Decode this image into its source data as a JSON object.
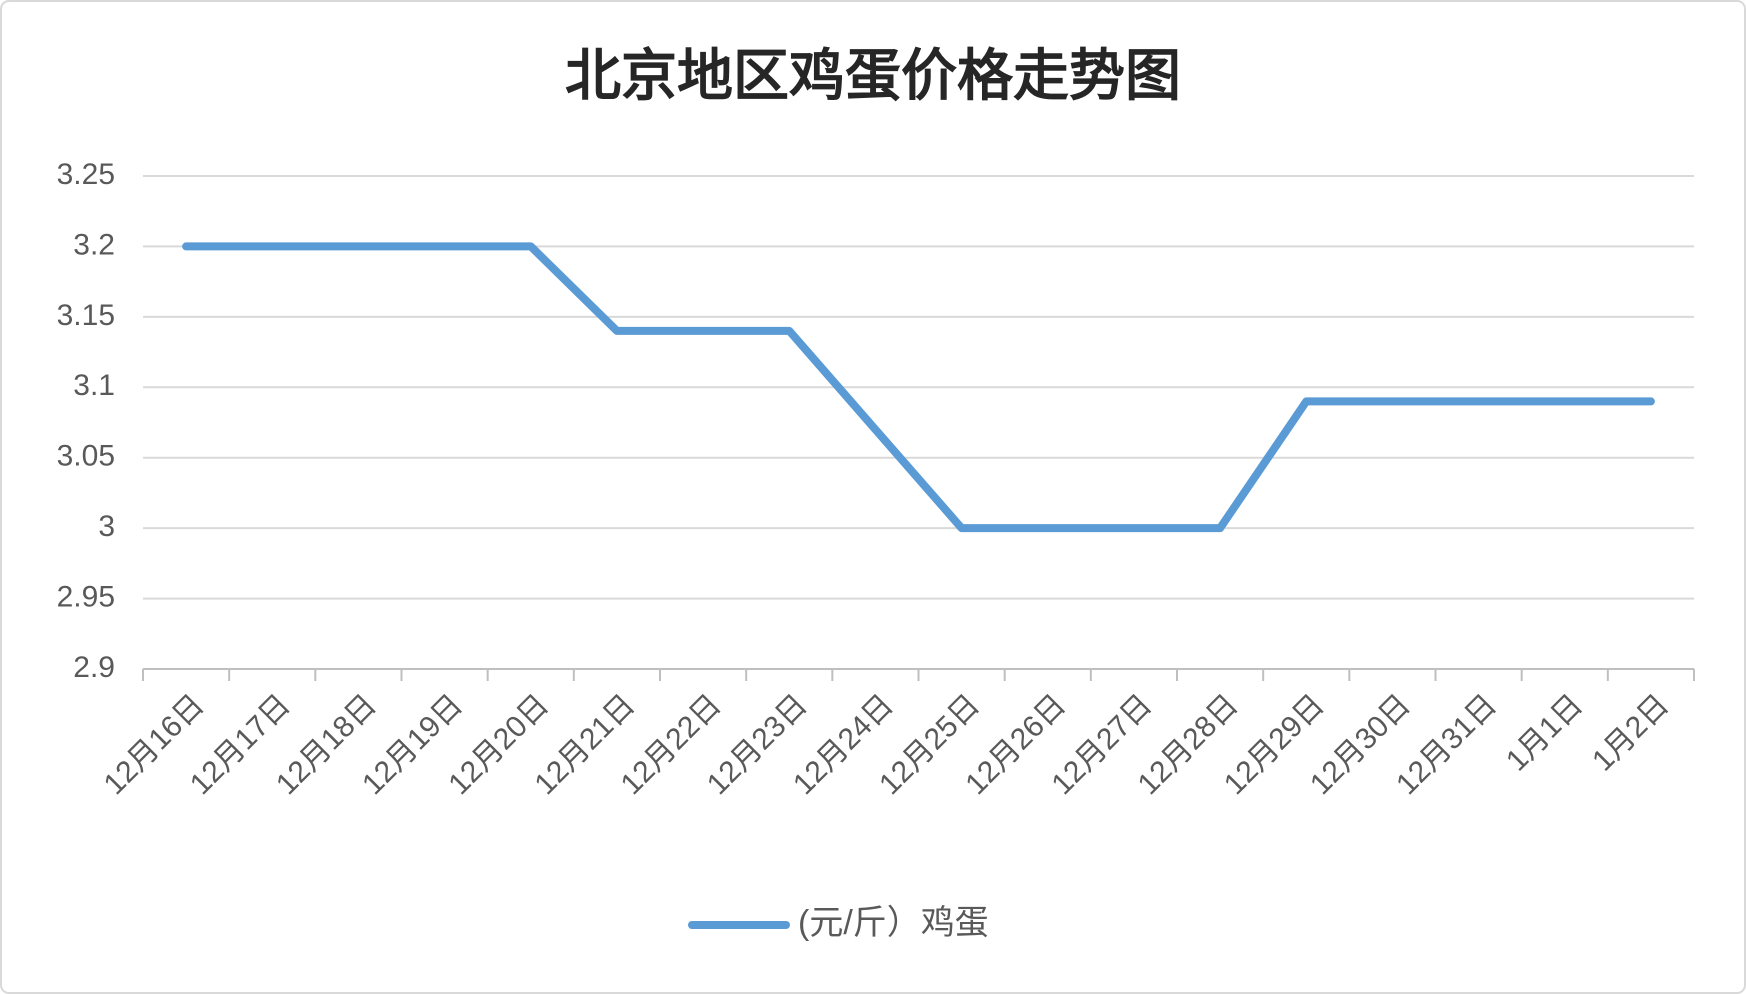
{
  "chart_data": {
    "type": "line",
    "title": "北京地区鸡蛋价格走势图",
    "categories": [
      "12月16日",
      "12月17日",
      "12月18日",
      "12月19日",
      "12月20日",
      "12月21日",
      "12月22日",
      "12月23日",
      "12月24日",
      "12月25日",
      "12月26日",
      "12月27日",
      "12月28日",
      "12月29日",
      "12月30日",
      "12月31日",
      "1月1日",
      "1月2日"
    ],
    "series": [
      {
        "name": "(元/斤）鸡蛋",
        "color": "#5b9bd5",
        "values": [
          3.2,
          3.2,
          3.2,
          3.2,
          3.2,
          3.14,
          3.14,
          3.14,
          3.07,
          3.0,
          3.0,
          3.0,
          3.0,
          3.09,
          3.09,
          3.09,
          3.09,
          3.09
        ]
      }
    ],
    "ylim": [
      2.9,
      3.25
    ],
    "yticks": [
      2.9,
      2.95,
      3,
      3.05,
      3.1,
      3.15,
      3.2,
      3.25
    ],
    "grid": true,
    "legend": "bottom"
  }
}
